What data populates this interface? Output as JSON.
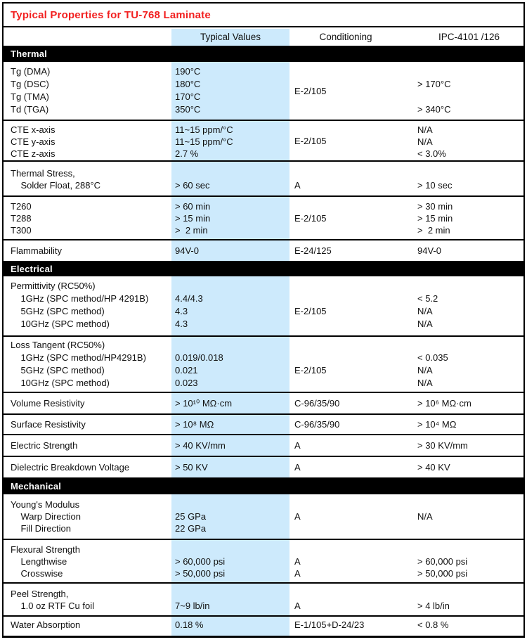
{
  "title": "Typical Properties for TU-768 Laminate",
  "colors": {
    "title_red": "#f22020",
    "band_blue": "#cdeafc",
    "section_bar": "#000000"
  },
  "header": {
    "typical": "Typical Values",
    "conditioning": "Conditioning",
    "ipc": "IPC-4101 /126"
  },
  "sections": [
    {
      "name": "Thermal",
      "groups": [
        {
          "id": "tg",
          "cond_center": "E-2/105",
          "lines": [
            [
              "Tg (DMA)",
              "190°C",
              "",
              ""
            ],
            [
              "Tg (DSC)",
              "180°C",
              "",
              "> 170°C"
            ],
            [
              "Tg (TMA)",
              "170°C",
              "",
              ""
            ],
            [
              "Td (TGA)",
              "350°C",
              "",
              "> 340°C"
            ]
          ]
        },
        {
          "id": "cte",
          "cond_center": "E-2/105",
          "lines": [
            [
              "CTE x-axis",
              "11~15 ppm/°C",
              "",
              "N/A"
            ],
            [
              "CTE y-axis",
              "11~15 ppm/°C",
              "",
              "N/A"
            ],
            [
              "CTE z-axis",
              "2.7 %",
              "",
              "< 3.0%"
            ]
          ]
        },
        {
          "id": "thermal_stress",
          "lines": [
            [
              "Thermal Stress,",
              "",
              "",
              ""
            ],
            [
              "    Solder Float, 288°C",
              "> 60 sec",
              "A",
              "> 10 sec"
            ]
          ]
        },
        {
          "id": "t_times",
          "cond_center": "E-2/105",
          "lines": [
            [
              "T260",
              "> 60 min",
              "",
              "> 30 min"
            ],
            [
              "T288",
              "> 15 min",
              "",
              "> 15 min"
            ],
            [
              "T300",
              ">  2 min",
              "",
              ">  2 min"
            ]
          ]
        },
        {
          "id": "flammability",
          "lines": [
            [
              "Flammability",
              "94V-0",
              "E-24/125",
              "94V-0"
            ]
          ]
        }
      ]
    },
    {
      "name": "Electrical",
      "groups": [
        {
          "id": "permittivity",
          "lines": [
            [
              "Permittivity (RC50%)",
              "",
              "",
              ""
            ],
            [
              "    1GHz (SPC method/HP 4291B)",
              "4.4/4.3",
              "",
              "< 5.2"
            ],
            [
              "    5GHz (SPC method)",
              "4.3",
              "E-2/105",
              "N/A"
            ],
            [
              "    10GHz (SPC method)",
              "4.3",
              "",
              "N/A"
            ]
          ]
        },
        {
          "id": "loss_tangent",
          "lines": [
            [
              "Loss Tangent (RC50%)",
              "",
              "",
              ""
            ],
            [
              "    1GHz (SPC method/HP4291B)",
              "0.019/0.018",
              "",
              "< 0.035"
            ],
            [
              "    5GHz (SPC method)",
              "0.021",
              "E-2/105",
              "N/A"
            ],
            [
              "    10GHz (SPC method)",
              "0.023",
              "",
              "N/A"
            ]
          ]
        },
        {
          "id": "volume_resistivity",
          "lines": [
            [
              "Volume Resistivity",
              "> 10¹⁰ MΩ·cm",
              "C-96/35/90",
              "> 10⁶ MΩ·cm"
            ]
          ]
        },
        {
          "id": "surface_resistivity",
          "lines": [
            [
              "Surface Resistivity",
              "> 10⁸ MΩ",
              "C-96/35/90",
              "> 10⁴ MΩ"
            ]
          ]
        },
        {
          "id": "electric_strength",
          "lines": [
            [
              "Electric Strength",
              "> 40 KV/mm",
              "A",
              "> 30 KV/mm"
            ]
          ]
        },
        {
          "id": "dielectric_breakdown",
          "lines": [
            [
              "Dielectric Breakdown Voltage",
              "> 50 KV",
              "A",
              "> 40 KV"
            ]
          ]
        }
      ]
    },
    {
      "name": "Mechanical",
      "groups": [
        {
          "id": "youngs_modulus",
          "cond_center": "A",
          "ipc_center": "N/A",
          "lines": [
            [
              "Young's Modulus",
              "",
              "",
              ""
            ],
            [
              "    Warp Direction",
              "25 GPa",
              "",
              ""
            ],
            [
              "    Fill Direction",
              "22 GPa",
              "",
              ""
            ]
          ]
        },
        {
          "id": "flexural_strength",
          "lines": [
            [
              "Flexural Strength",
              "",
              "",
              ""
            ],
            [
              "    Lengthwise",
              "> 60,000 psi",
              "A",
              "> 60,000 psi"
            ],
            [
              "    Crosswise",
              "> 50,000 psi",
              "A",
              "> 50,000 psi"
            ]
          ]
        },
        {
          "id": "peel_strength",
          "lines": [
            [
              "Peel Strength,",
              "",
              "",
              ""
            ],
            [
              "    1.0 oz RTF Cu foil",
              "7~9 lb/in",
              "A",
              "> 4 lb/in"
            ]
          ]
        },
        {
          "id": "water_absorption",
          "lines": [
            [
              "Water Absorption",
              "0.18 %",
              "E-1/105+D-24/23",
              "< 0.8 %"
            ]
          ]
        }
      ]
    }
  ]
}
